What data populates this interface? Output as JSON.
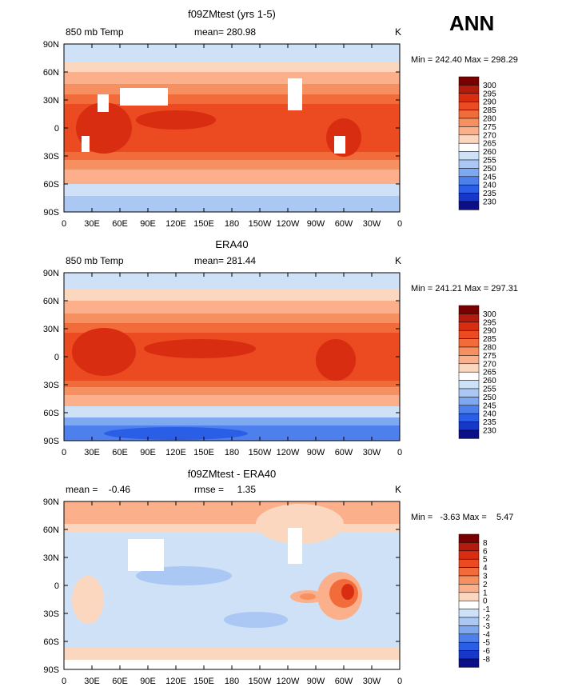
{
  "season": "ANN",
  "panels": [
    {
      "title": "f09ZMtest (yrs 1-5)",
      "variable": "850 mb Temp",
      "stat_text": "mean= 280.98",
      "units": "K",
      "minmax": "Min = 242.40 Max = 298.29",
      "colorbar_labels": [
        "300",
        "295",
        "290",
        "285",
        "280",
        "275",
        "270",
        "265",
        "260",
        "255",
        "250",
        "245",
        "240",
        "235",
        "230"
      ],
      "colorbar_colors": [
        "#780000",
        "#b31b0d",
        "#d92d12",
        "#ec4a20",
        "#f26b3a",
        "#f79060",
        "#fbb08b",
        "#fcd7bf",
        "#ffffff",
        "#cfe1f7",
        "#aac8f3",
        "#7ea8ef",
        "#4d80ec",
        "#2a5ee6",
        "#1737c8",
        "#0b0f8a"
      ]
    },
    {
      "title": "ERA40",
      "variable": "850 mb Temp",
      "stat_text": "mean= 281.44",
      "units": "K",
      "minmax": "Min = 241.21 Max = 297.31",
      "colorbar_labels": [
        "300",
        "295",
        "290",
        "285",
        "280",
        "275",
        "270",
        "265",
        "260",
        "255",
        "250",
        "245",
        "240",
        "235",
        "230"
      ],
      "colorbar_colors": [
        "#780000",
        "#b31b0d",
        "#d92d12",
        "#ec4a20",
        "#f26b3a",
        "#f79060",
        "#fbb08b",
        "#fcd7bf",
        "#ffffff",
        "#cfe1f7",
        "#aac8f3",
        "#7ea8ef",
        "#4d80ec",
        "#2a5ee6",
        "#1737c8",
        "#0b0f8a"
      ]
    },
    {
      "title": "f09ZMtest - ERA40",
      "variable": "mean =    -0.46",
      "stat_text": "rmse =     1.35",
      "units": "K",
      "minmax": "Min =   -3.63 Max =    5.47",
      "colorbar_labels": [
        "8",
        "6",
        "5",
        "4",
        "3",
        "2",
        "1",
        "0",
        "-1",
        "-2",
        "-3",
        "-4",
        "-5",
        "-6",
        "-8"
      ],
      "colorbar_colors": [
        "#780000",
        "#b31b0d",
        "#d92d12",
        "#ec4a20",
        "#f26b3a",
        "#f79060",
        "#fbb08b",
        "#fcd7bf",
        "#ffffff",
        "#cfe1f7",
        "#aac8f3",
        "#7ea8ef",
        "#4d80ec",
        "#2a5ee6",
        "#1737c8",
        "#0b0f8a"
      ]
    }
  ],
  "lat_labels": [
    "90N",
    "60N",
    "30N",
    "0",
    "30S",
    "60S",
    "90S"
  ],
  "lon_labels": [
    "0",
    "30E",
    "60E",
    "90E",
    "120E",
    "150E",
    "180",
    "150W",
    "120W",
    "90W",
    "60W",
    "30W",
    "0"
  ]
}
